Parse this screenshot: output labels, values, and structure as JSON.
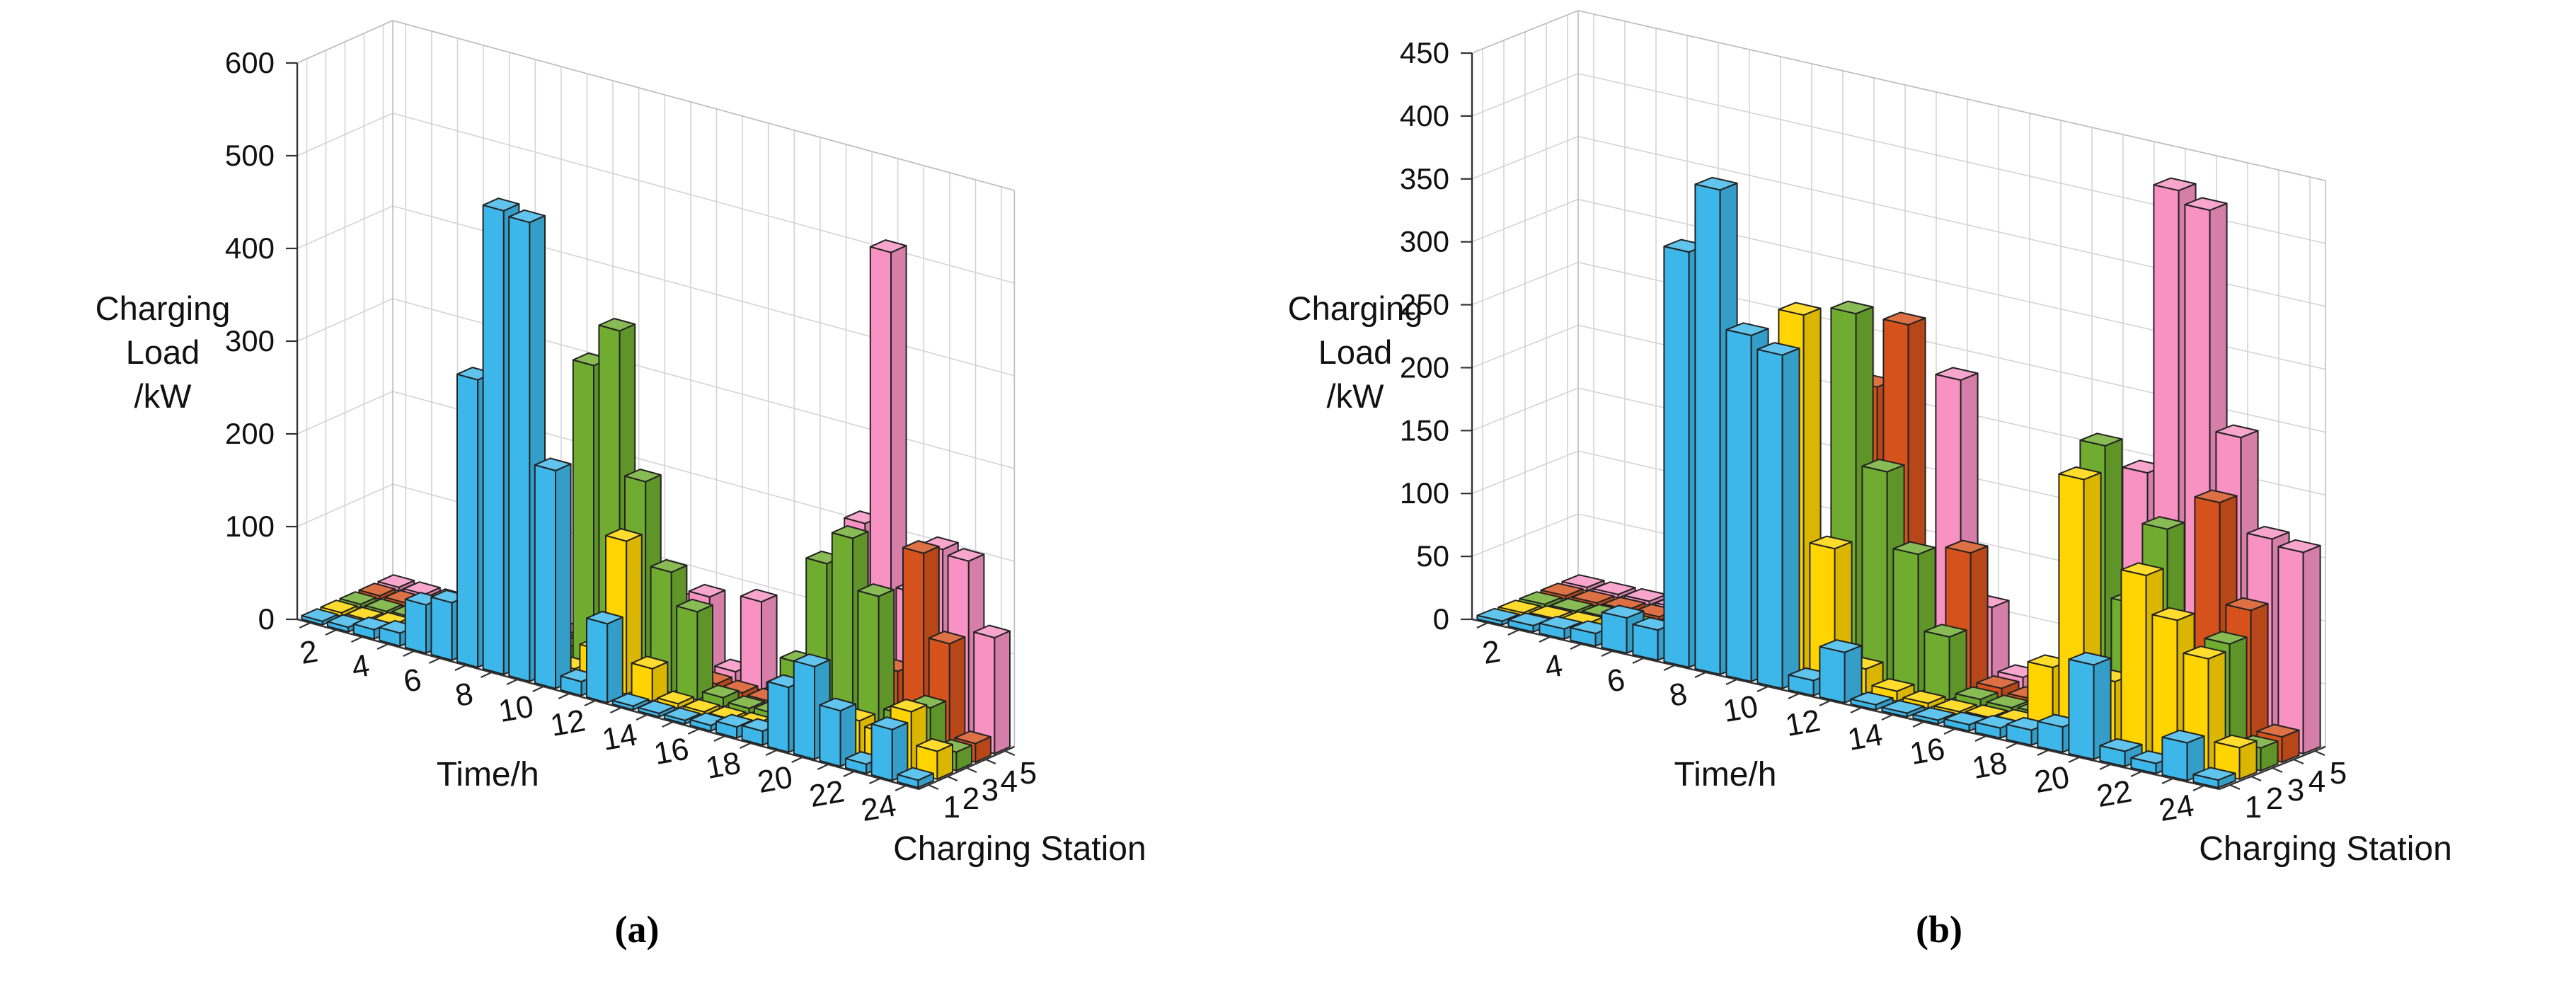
{
  "figure": {
    "background": "#ffffff",
    "grid_color": "#d4d4d4",
    "axis_color": "#333333",
    "text_color": "#111111"
  },
  "chart_data": [
    {
      "type": "bar3d",
      "caption": "(a)",
      "zlabel_lines": [
        "Charging",
        "Load",
        "/kW"
      ],
      "xlabel": "Time/h",
      "ylabel": "Charging Station",
      "zlim": [
        0,
        600
      ],
      "ztick_labels": [
        "0",
        "100",
        "200",
        "300",
        "400",
        "500",
        "600"
      ],
      "time_tick_labels": [
        "2",
        "4",
        "6",
        "8",
        "10",
        "12",
        "14",
        "16",
        "18",
        "20",
        "22",
        "24"
      ],
      "station_tick_labels": [
        "1",
        "2",
        "3",
        "4",
        "5"
      ],
      "x": [
        1,
        2,
        3,
        4,
        5,
        6,
        7,
        8,
        9,
        10,
        11,
        12,
        13,
        14,
        15,
        16,
        17,
        18,
        19,
        20,
        21,
        22,
        23,
        24
      ],
      "legend_position": "none",
      "grid": true,
      "series": [
        {
          "name": "Station 1",
          "color": "#3DB7E9",
          "values": [
            3,
            5,
            10,
            14,
            52,
            62,
            310,
            500,
            495,
            235,
            15,
            85,
            4,
            3,
            3,
            6,
            12,
            15,
            70,
            100,
            60,
            10,
            55,
            8
          ]
        },
        {
          "name": "Station 2",
          "color": "#FFD400",
          "values": [
            2,
            4,
            6,
            3,
            3,
            4,
            6,
            8,
            10,
            12,
            40,
            165,
            35,
            5,
            3,
            3,
            5,
            10,
            15,
            35,
            40,
            35,
            65,
            30
          ]
        },
        {
          "name": "Station 3",
          "color": "#6FAC2F",
          "values": [
            2,
            3,
            5,
            4,
            3,
            4,
            8,
            12,
            18,
            330,
            375,
            220,
            130,
            95,
            10,
            6,
            8,
            70,
            185,
            220,
            165,
            45,
            60,
            20
          ]
        },
        {
          "name": "Station 4",
          "color": "#D5521C",
          "values": [
            1,
            2,
            3,
            3,
            2,
            3,
            5,
            6,
            8,
            10,
            12,
            15,
            10,
            8,
            6,
            5,
            6,
            10,
            14,
            18,
            75,
            210,
            120,
            20
          ]
        },
        {
          "name": "Station 5",
          "color": "#F792C3",
          "values": [
            1,
            2,
            3,
            2,
            2,
            3,
            5,
            6,
            8,
            10,
            18,
            70,
            85,
            12,
            95,
            10,
            15,
            130,
            210,
            510,
            150,
            205,
            200,
            125
          ]
        }
      ]
    },
    {
      "type": "bar3d",
      "caption": "(b)",
      "zlabel_lines": [
        "Charging",
        "Load",
        "/kW"
      ],
      "xlabel": "Time/h",
      "ylabel": "Charging Station",
      "zlim": [
        0,
        450
      ],
      "ztick_labels": [
        "0",
        "50",
        "100",
        "150",
        "200",
        "250",
        "300",
        "350",
        "400",
        "450"
      ],
      "time_tick_labels": [
        "2",
        "4",
        "6",
        "8",
        "10",
        "12",
        "14",
        "16",
        "18",
        "20",
        "22",
        "24"
      ],
      "station_tick_labels": [
        "1",
        "2",
        "3",
        "4",
        "5"
      ],
      "x": [
        1,
        2,
        3,
        4,
        5,
        6,
        7,
        8,
        9,
        10,
        11,
        12,
        13,
        14,
        15,
        16,
        17,
        18,
        19,
        20,
        21,
        22,
        23,
        24
      ],
      "legend_position": "none",
      "grid": true,
      "series": [
        {
          "name": "Station 1",
          "color": "#3DB7E9",
          "values": [
            3,
            5,
            8,
            10,
            28,
            24,
            330,
            385,
            275,
            265,
            12,
            40,
            4,
            3,
            3,
            5,
            8,
            12,
            20,
            75,
            12,
            8,
            30,
            6
          ]
        },
        {
          "name": "Station 2",
          "color": "#FFD400",
          "values": [
            2,
            4,
            5,
            3,
            3,
            5,
            6,
            8,
            12,
            290,
            110,
            20,
            8,
            4,
            3,
            4,
            6,
            55,
            210,
            55,
            145,
            115,
            90,
            25
          ]
        },
        {
          "name": "Station 3",
          "color": "#6FAC2F",
          "values": [
            2,
            3,
            4,
            3,
            3,
            4,
            6,
            8,
            12,
            18,
            290,
            170,
            110,
            50,
            6,
            5,
            6,
            12,
            230,
            110,
            175,
            45,
            95,
            18
          ]
        },
        {
          "name": "Station 4",
          "color": "#D5521C",
          "values": [
            1,
            2,
            3,
            3,
            2,
            3,
            5,
            6,
            8,
            10,
            225,
            280,
            14,
            110,
            8,
            5,
            6,
            10,
            14,
            20,
            70,
            195,
            115,
            20
          ]
        },
        {
          "name": "Station 5",
          "color": "#F792C3",
          "values": [
            1,
            2,
            3,
            2,
            2,
            3,
            4,
            6,
            8,
            10,
            15,
            25,
            235,
            60,
            10,
            8,
            12,
            150,
            195,
            425,
            415,
            240,
            165,
            160
          ]
        }
      ]
    }
  ]
}
